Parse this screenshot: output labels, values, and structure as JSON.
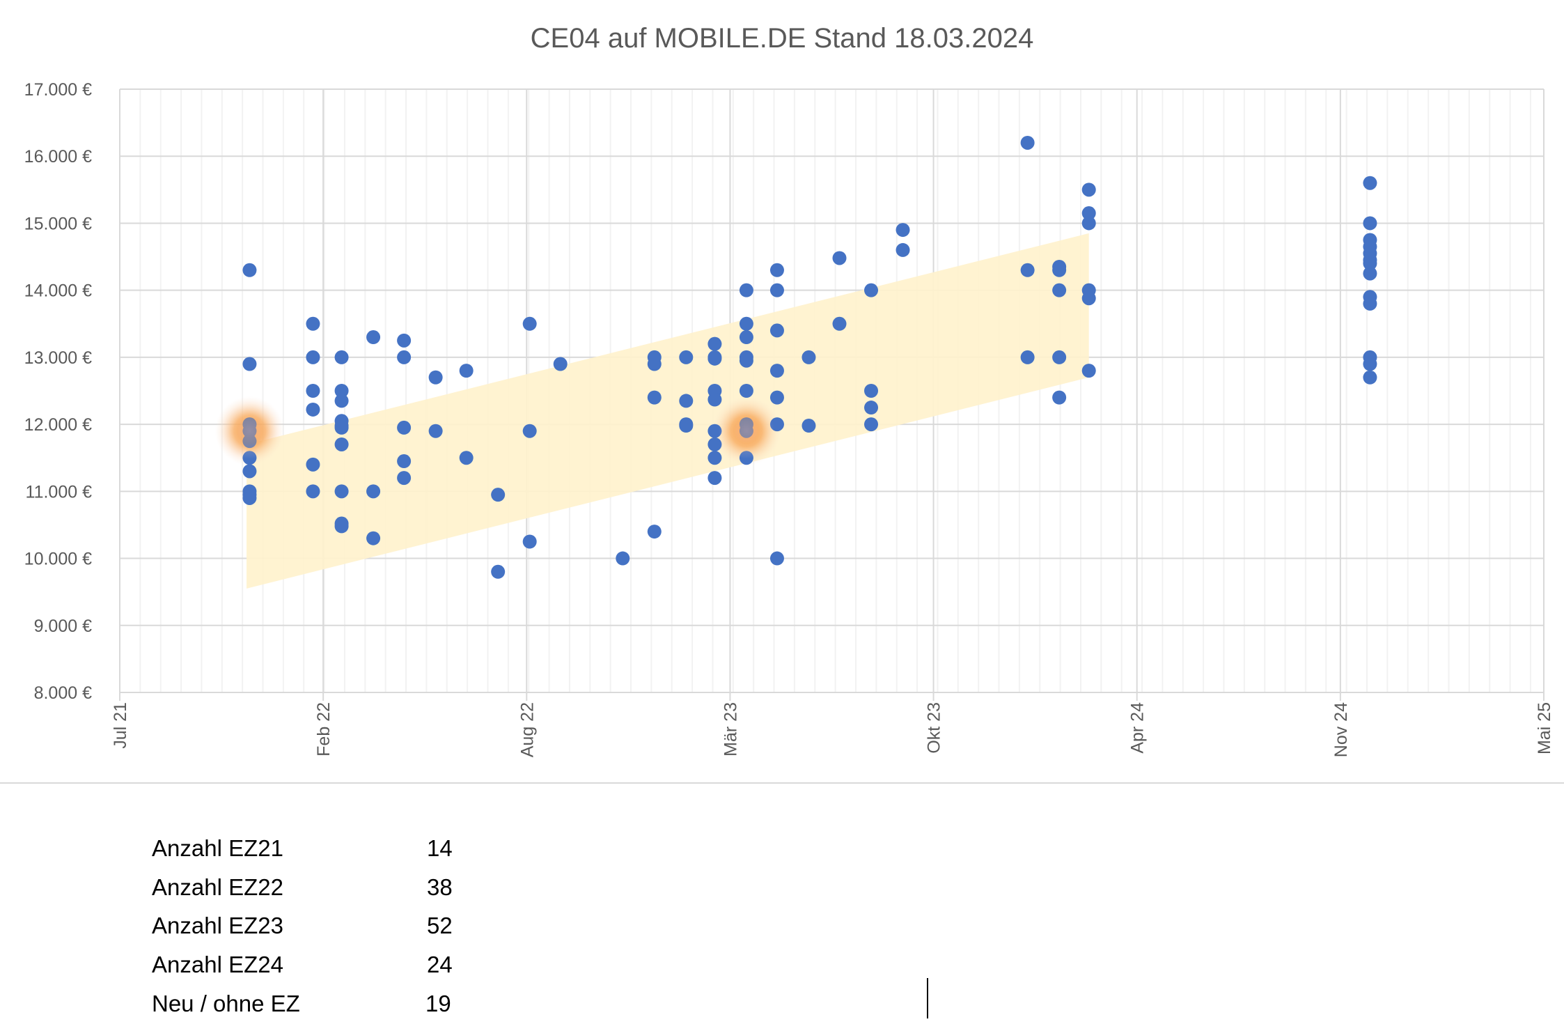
{
  "chart_data": {
    "type": "scatter",
    "title": "CE04 auf MOBILE.DE Stand 18.03.2024",
    "xlabel": "",
    "ylabel": "",
    "x_axis": {
      "type": "date",
      "min": "2021-07-27",
      "max": "2025-05-20",
      "major_unit_days": 199,
      "tick_labels": [
        "Jul 21",
        "Feb 22",
        "Aug 22",
        "Mär 23",
        "Okt 23",
        "Apr 24",
        "Nov 24",
        "Mai 25"
      ]
    },
    "y_axis": {
      "min": 8000,
      "max": 17000,
      "major_unit": 1000,
      "tick_labels": [
        "8.000 €",
        "9.000 €",
        "10.000 €",
        "11.000 €",
        "12.000 €",
        "13.000 €",
        "14.000 €",
        "15.000 €",
        "16.000 €",
        "17.000 €"
      ]
    },
    "grid": true,
    "colors": {
      "points": "#4472C4",
      "band": "#FFF2CC",
      "highlight": "#F4B183",
      "grid": "#D9D9D9",
      "minor_grid": "#F2F2F2"
    },
    "series": [
      {
        "values": [
          [
            "2021-12-01",
            [
              14300,
              12900,
              12000,
              11900,
              11750,
              11500,
              11300,
              11000,
              10950,
              10900
            ]
          ],
          [
            "2022-02-01",
            [
              13500,
              13000,
              12500,
              12220,
              11400,
              11000
            ]
          ],
          [
            "2022-03-01",
            [
              13000,
              12500,
              12350,
              12050,
              11980,
              11950,
              11700,
              11000,
              10520,
              10480
            ]
          ],
          [
            "2022-04-01",
            [
              13300,
              11000,
              10300
            ]
          ],
          [
            "2022-05-01",
            [
              13250,
              13000,
              11950,
              11450,
              11200
            ]
          ],
          [
            "2022-06-01",
            [
              12700,
              11900
            ]
          ],
          [
            "2022-07-01",
            [
              12800,
              11500
            ]
          ],
          [
            "2022-08-01",
            [
              10950,
              9800
            ]
          ],
          [
            "2022-09-01",
            [
              13500,
              11900,
              10250
            ]
          ],
          [
            "2022-10-01",
            [
              12900
            ]
          ],
          [
            "2022-12-01",
            [
              10000
            ]
          ],
          [
            "2023-01-01",
            [
              13000,
              12900,
              12400,
              10400
            ]
          ],
          [
            "2023-02-01",
            [
              13000,
              12350,
              12000,
              11980
            ]
          ],
          [
            "2023-03-01",
            [
              13200,
              13000,
              12980,
              12500,
              12370,
              11900,
              11700,
              11500,
              11200
            ]
          ],
          [
            "2023-04-01",
            [
              14000,
              13500,
              13300,
              13000,
              12950,
              12500,
              12000,
              11900,
              11500
            ]
          ],
          [
            "2023-05-01",
            [
              14300,
              14000,
              13400,
              12800,
              12400,
              12000,
              10000
            ]
          ],
          [
            "2023-06-01",
            [
              13000,
              11980
            ]
          ],
          [
            "2023-07-01",
            [
              14480,
              13500
            ]
          ],
          [
            "2023-08-01",
            [
              14000,
              12500,
              12250,
              12000
            ]
          ],
          [
            "2023-09-01",
            [
              14900,
              14600
            ]
          ],
          [
            "2024-01-01",
            [
              16200,
              14300,
              13000
            ]
          ],
          [
            "2024-02-01",
            [
              14350,
              14300,
              14000,
              13000,
              12400
            ]
          ],
          [
            "2024-03-01",
            [
              15500,
              15150,
              15000,
              14000,
              13880,
              12800
            ]
          ],
          [
            "2024-12-01",
            [
              15600,
              15000,
              14750,
              14650,
              14550,
              14450,
              14400,
              14250,
              13900,
              13800,
              13000,
              12900,
              12700
            ]
          ]
        ]
      }
    ],
    "band": {
      "start": "2021-11-28",
      "end": "2024-03-01",
      "start_range": [
        9550,
        11700
      ],
      "end_range": [
        12700,
        14850
      ]
    },
    "highlights": [
      [
        "2021-12-01",
        11900
      ],
      [
        "2023-04-01",
        11900
      ]
    ]
  },
  "stats": [
    {
      "label": "Anzahl EZ21",
      "value": "14"
    },
    {
      "label": "Anzahl EZ22",
      "value": "38"
    },
    {
      "label": "Anzahl EZ23",
      "value": "52"
    },
    {
      "label": "Anzahl EZ24",
      "value": "24"
    },
    {
      "label": "Neu / ohne EZ",
      "value": "19"
    }
  ]
}
